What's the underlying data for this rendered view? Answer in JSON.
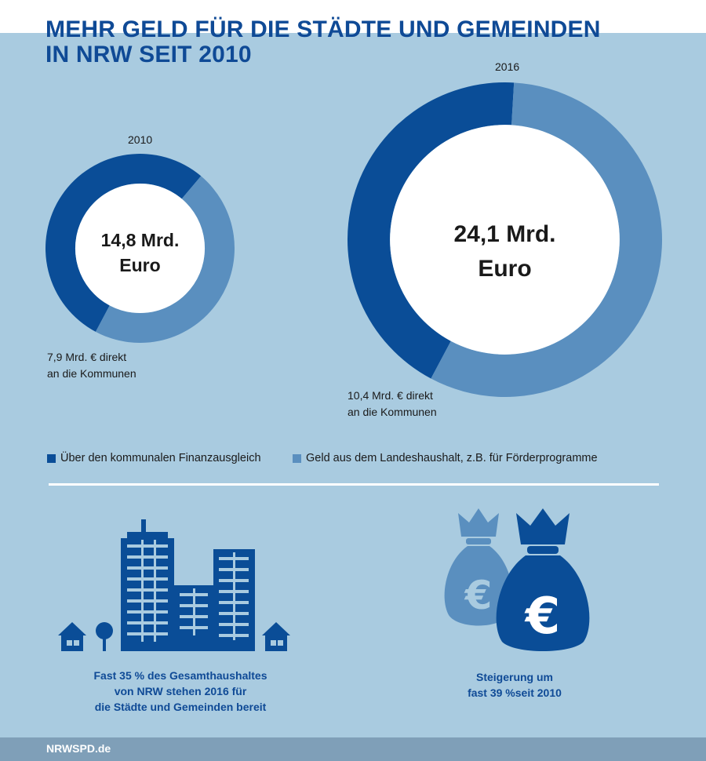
{
  "header": {
    "title_line1": "MEHR GELD FÜR DIE STÄDTE UND GEMEINDEN",
    "title_line2": "IN NRW SEIT 2010"
  },
  "chart_data": {
    "type": "pie",
    "colors": {
      "finanzausgleich": "#0a4d97",
      "landeshaushalt": "#5a8fbf"
    },
    "legend": [
      "Über den kommunalen Finanzausgleich",
      "Geld aus dem Landeshaushalt, z.B. für Förderprogramme"
    ],
    "legend_position": "bottom",
    "charts": [
      {
        "year": "2010",
        "total": 14.8,
        "total_line1": "14,8 Mrd.",
        "total_line2": "Euro",
        "slices": [
          {
            "label": "Über den kommunalen Finanzausgleich",
            "value": 7.9
          },
          {
            "label": "Geld aus dem Landeshaushalt, z.B. für Förderprogramme",
            "value": 6.9
          }
        ],
        "annotation_line1": "7,9 Mrd. € direkt",
        "annotation_line2": "an die Kommunen"
      },
      {
        "year": "2016",
        "total": 24.1,
        "total_line1": "24,1 Mrd.",
        "total_line2": "Euro",
        "slices": [
          {
            "label": "Über den kommunalen Finanzausgleich",
            "value": 10.4
          },
          {
            "label": "Geld aus dem Landeshaushalt, z.B. für Förderprogramme",
            "value": 13.7
          }
        ],
        "annotation_line1": "10,4 Mrd. € direkt",
        "annotation_line2": "an die Kommunen"
      }
    ]
  },
  "info": {
    "city_icon": "city-buildings-icon",
    "city_line1": "Fast 35 % des Gesamthaushaltes",
    "city_line2": "von NRW stehen 2016 für",
    "city_line3": "die Städte und Gemeinden bereit",
    "money_icon": "money-bag-euro-icon",
    "money_line1": "Steigerung um",
    "money_line2": "fast 39 %seit 2010"
  },
  "footer": {
    "text": "NRWSPD.de"
  }
}
